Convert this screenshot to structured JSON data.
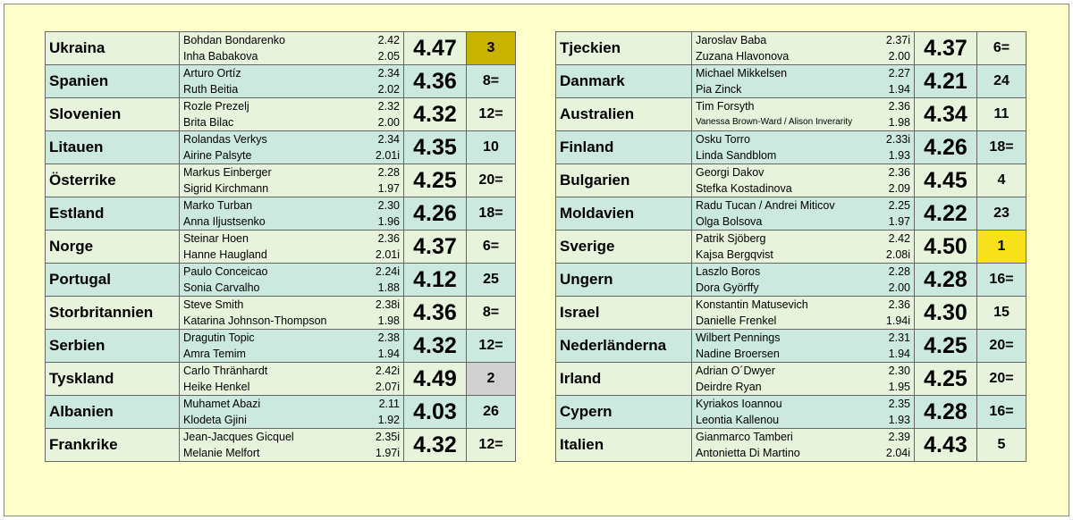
{
  "left_table": [
    {
      "country": "Ukraina",
      "athletes": [
        "Bohdan Bondarenko",
        "Inha Babakova"
      ],
      "heights": [
        "2.42",
        "2.05"
      ],
      "total": "4.47",
      "rank": "3",
      "medal": "bronze"
    },
    {
      "country": "Spanien",
      "athletes": [
        "Arturo Ortíz",
        "Ruth Beitia"
      ],
      "heights": [
        "2.34",
        "2.02"
      ],
      "total": "4.36",
      "rank": "8=",
      "medal": ""
    },
    {
      "country": "Slovenien",
      "athletes": [
        "Rozle Prezelj",
        "Brita Bilac"
      ],
      "heights": [
        "2.32",
        "2.00"
      ],
      "total": "4.32",
      "rank": "12=",
      "medal": ""
    },
    {
      "country": "Litauen",
      "athletes": [
        "Rolandas Verkys",
        "Airine Palsyte"
      ],
      "heights": [
        "2.34",
        "2.01i"
      ],
      "total": "4.35",
      "rank": "10",
      "medal": ""
    },
    {
      "country": "Österrike",
      "athletes": [
        "Markus Einberger",
        "Sigrid Kirchmann"
      ],
      "heights": [
        "2.28",
        "1.97"
      ],
      "total": "4.25",
      "rank": "20=",
      "medal": ""
    },
    {
      "country": "Estland",
      "athletes": [
        "Marko Turban",
        "Anna Iljustsenko"
      ],
      "heights": [
        "2.30",
        "1.96"
      ],
      "total": "4.26",
      "rank": "18=",
      "medal": ""
    },
    {
      "country": "Norge",
      "athletes": [
        "Steinar Hoen",
        "Hanne Haugland"
      ],
      "heights": [
        "2.36",
        "2.01i"
      ],
      "total": "4.37",
      "rank": "6=",
      "medal": ""
    },
    {
      "country": "Portugal",
      "athletes": [
        "Paulo Conceicao",
        "Sonia Carvalho"
      ],
      "heights": [
        "2.24i",
        "1.88"
      ],
      "total": "4.12",
      "rank": "25",
      "medal": ""
    },
    {
      "country": "Storbritannien",
      "athletes": [
        "Steve Smith",
        "Katarina Johnson-Thompson"
      ],
      "heights": [
        "2.38i",
        "1.98"
      ],
      "total": "4.36",
      "rank": "8=",
      "medal": ""
    },
    {
      "country": "Serbien",
      "athletes": [
        "Dragutin Topic",
        "Amra Temim"
      ],
      "heights": [
        "2.38",
        "1.94"
      ],
      "total": "4.32",
      "rank": "12=",
      "medal": ""
    },
    {
      "country": "Tyskland",
      "athletes": [
        "Carlo Thränhardt",
        "Heike Henkel"
      ],
      "heights": [
        "2.42i",
        "2.07i"
      ],
      "total": "4.49",
      "rank": "2",
      "medal": "silver"
    },
    {
      "country": "Albanien",
      "athletes": [
        "Muhamet Abazi",
        "Klodeta Gjini"
      ],
      "heights": [
        "2.11",
        "1.92"
      ],
      "total": "4.03",
      "rank": "26",
      "medal": ""
    },
    {
      "country": "Frankrike",
      "athletes": [
        "Jean-Jacques Gicquel",
        "Melanie Melfort"
      ],
      "heights": [
        "2.35i",
        "1.97i"
      ],
      "total": "4.32",
      "rank": "12=",
      "medal": ""
    }
  ],
  "right_table": [
    {
      "country": "Tjeckien",
      "athletes": [
        "Jaroslav Baba",
        "Zuzana Hlavonova"
      ],
      "heights": [
        "2.37i",
        "2.00"
      ],
      "total": "4.37",
      "rank": "6=",
      "medal": ""
    },
    {
      "country": "Danmark",
      "athletes": [
        "Michael Mikkelsen",
        "Pia Zinck"
      ],
      "heights": [
        "2.27",
        "1.94"
      ],
      "total": "4.21",
      "rank": "24",
      "medal": ""
    },
    {
      "country": "Australien",
      "athletes": [
        "Tim Forsyth",
        "Vanessa Brown-Ward / Alison Inverarity"
      ],
      "heights": [
        "2.36",
        "1.98"
      ],
      "total": "4.34",
      "rank": "11",
      "medal": ""
    },
    {
      "country": "Finland",
      "athletes": [
        "Osku Torro",
        "Linda Sandblom"
      ],
      "heights": [
        "2.33i",
        "1.93"
      ],
      "total": "4.26",
      "rank": "18=",
      "medal": ""
    },
    {
      "country": "Bulgarien",
      "athletes": [
        "Georgi Dakov",
        "Stefka Kostadinova"
      ],
      "heights": [
        "2.36",
        "2.09"
      ],
      "total": "4.45",
      "rank": "4",
      "medal": ""
    },
    {
      "country": "Moldavien",
      "athletes": [
        "Radu Tucan / Andrei Miticov",
        "Olga Bolsova"
      ],
      "heights": [
        "2.25",
        "1.97"
      ],
      "total": "4.22",
      "rank": "23",
      "medal": ""
    },
    {
      "country": "Sverige",
      "athletes": [
        "Patrik Sjöberg",
        "Kajsa Bergqvist"
      ],
      "heights": [
        "2.42",
        "2.08i"
      ],
      "total": "4.50",
      "rank": "1",
      "medal": "gold"
    },
    {
      "country": "Ungern",
      "athletes": [
        "Laszlo Boros",
        "Dora Györffy"
      ],
      "heights": [
        "2.28",
        "2.00"
      ],
      "total": "4.28",
      "rank": "16=",
      "medal": ""
    },
    {
      "country": "Israel",
      "athletes": [
        "Konstantin Matusevich",
        "Danielle Frenkel"
      ],
      "heights": [
        "2.36",
        "1.94i"
      ],
      "total": "4.30",
      "rank": "15",
      "medal": ""
    },
    {
      "country": "Nederländerna",
      "athletes": [
        "Wilbert Pennings",
        "Nadine Broersen"
      ],
      "heights": [
        "2.31",
        "1.94"
      ],
      "total": "4.25",
      "rank": "20=",
      "medal": ""
    },
    {
      "country": "Irland",
      "athletes": [
        "Adrian O´Dwyer",
        "Deirdre Ryan"
      ],
      "heights": [
        "2.30",
        "1.95"
      ],
      "total": "4.25",
      "rank": "20=",
      "medal": ""
    },
    {
      "country": "Cypern",
      "athletes": [
        "Kyriakos Ioannou",
        "Leontia Kallenou"
      ],
      "heights": [
        "2.35",
        "1.93"
      ],
      "total": "4.28",
      "rank": "16=",
      "medal": ""
    },
    {
      "country": "Italien",
      "athletes": [
        "Gianmarco Tamberi",
        "Antonietta Di Martino"
      ],
      "heights": [
        "2.39",
        "2.04i"
      ],
      "total": "4.43",
      "rank": "5",
      "medal": ""
    }
  ],
  "colors": {
    "background": "#ffffcc",
    "row_light": "#e8f3dc",
    "row_teal": "#cbe9de",
    "gold": "#f7e11a",
    "silver": "#d0d0d0",
    "bronze": "#c8b400"
  }
}
